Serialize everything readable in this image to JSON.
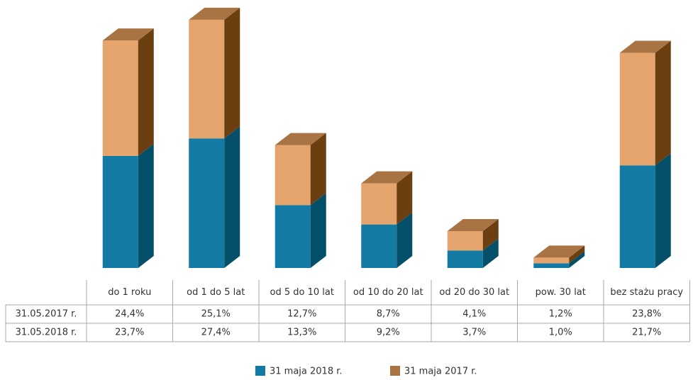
{
  "chart_data": {
    "type": "bar3d_stacked",
    "categories": [
      "do 1 roku",
      "od 1 do 5 lat",
      "od 5 do 10 lat",
      "od 10 do 20 lat",
      "od 20 do 30 lat",
      "pow. 30 lat",
      "bez stażu pracy"
    ],
    "series": [
      {
        "name": "31 maja 2018 r.",
        "row_label": "31.05.2018 r.",
        "color": "#137ba3",
        "side_color": "#04506b",
        "values": [
          23.7,
          27.4,
          13.3,
          9.2,
          3.7,
          1.0,
          21.7
        ],
        "value_labels": [
          "23,7%",
          "27,4%",
          "13,3%",
          "9,2%",
          "3,7%",
          "1,0%",
          "21,7%"
        ]
      },
      {
        "name": "31 maja 2017 r.",
        "row_label": "31.05.2017 r.",
        "color": "#e5a46b",
        "side_color": "#6b3f10",
        "top_color": "#a87444",
        "values": [
          24.4,
          25.1,
          12.7,
          8.7,
          4.1,
          1.2,
          23.8
        ],
        "value_labels": [
          "24,4%",
          "25,1%",
          "12,7%",
          "8,7%",
          "4,1%",
          "1,2%",
          "23,8%"
        ]
      }
    ],
    "legend": "bottom"
  }
}
